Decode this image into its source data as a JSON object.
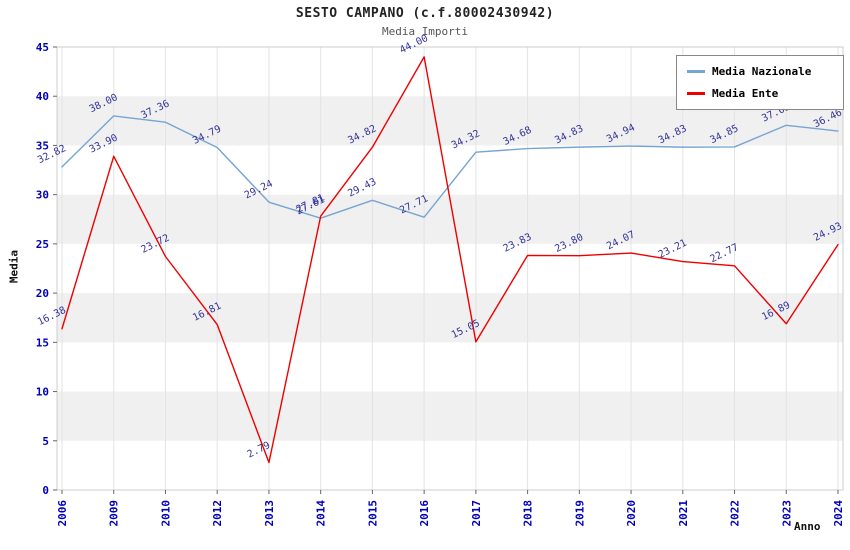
{
  "title": "SESTO CAMPANO (c.f.80002430942)",
  "subtitle": "Media Importi",
  "chart_data": {
    "type": "line",
    "x": [
      "2006",
      "2009",
      "2010",
      "2012",
      "2013",
      "2014",
      "2015",
      "2016",
      "2017",
      "2018",
      "2019",
      "2020",
      "2021",
      "2022",
      "2023",
      "2024"
    ],
    "series": [
      {
        "name": "Media Nazionale",
        "color": "#76a5d1",
        "values": [
          32.82,
          38.0,
          37.36,
          34.79,
          29.24,
          27.61,
          29.43,
          27.71,
          34.32,
          34.68,
          34.83,
          34.94,
          34.83,
          34.85,
          37.05,
          36.46
        ]
      },
      {
        "name": "Media Ente",
        "color": "#ee0000",
        "values": [
          16.38,
          33.9,
          23.72,
          16.81,
          2.79,
          27.81,
          34.82,
          44.0,
          15.05,
          23.83,
          23.8,
          24.07,
          23.21,
          22.77,
          16.89,
          24.93
        ]
      }
    ],
    "xlabel": "Anno",
    "ylabel": "Media",
    "ylim": [
      0,
      45
    ],
    "yticks": [
      0,
      5,
      10,
      15,
      20,
      25,
      30,
      35,
      40,
      45
    ],
    "grid": "alternating-horizontal-bands",
    "legend_position": "top-right",
    "band_color": "#f0f0f0",
    "tick_label_color": "#0000bb",
    "point_label_color": "#333399"
  }
}
